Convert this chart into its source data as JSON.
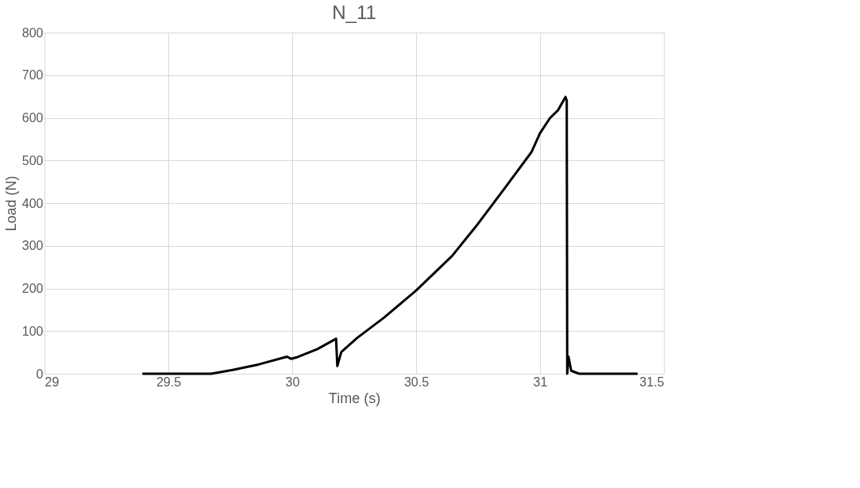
{
  "chart_data": {
    "type": "line",
    "title": "N_11",
    "xlabel": "Time (s)",
    "ylabel": "Load (N)",
    "x": [
      29.395,
      29.609,
      29.673,
      29.759,
      29.866,
      29.979,
      29.995,
      30.016,
      30.102,
      30.177,
      30.182,
      30.198,
      30.262,
      30.369,
      30.5,
      30.645,
      30.741,
      30.859,
      30.966,
      31.0,
      31.041,
      31.073,
      31.103,
      31.108,
      31.11,
      31.115,
      31.126,
      31.158,
      31.394
    ],
    "series": [
      {
        "color": "#000000",
        "values": [
          0,
          0,
          0,
          9,
          22,
          40,
          35,
          38,
          58,
          82,
          18,
          51,
          84,
          131,
          195,
          276,
          345,
          436,
          520,
          564,
          600,
          618,
          649,
          640,
          0,
          40,
          7,
          0,
          0
        ]
      }
    ],
    "xlim": [
      29,
      31.5
    ],
    "xticks": [
      29,
      29.5,
      30,
      30.5,
      31,
      31.5
    ],
    "ylim": [
      0,
      800
    ],
    "yticks": [
      0,
      100,
      200,
      300,
      400,
      500,
      600,
      700,
      800
    ],
    "grid": true,
    "legend": false,
    "marker": "none",
    "line_style": "solid"
  }
}
